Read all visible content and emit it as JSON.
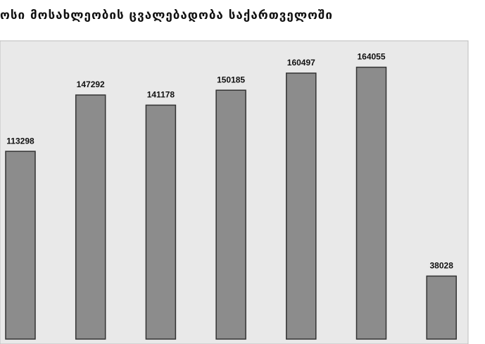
{
  "chart_data": {
    "type": "bar",
    "title": "ოსი მოსახლეობის ცვალებადობა საქართველოში",
    "values": [
      113298,
      147292,
      141178,
      150185,
      160497,
      164055,
      38028
    ],
    "color": "#8c8c8c",
    "ylim": [
      0,
      180000
    ]
  }
}
